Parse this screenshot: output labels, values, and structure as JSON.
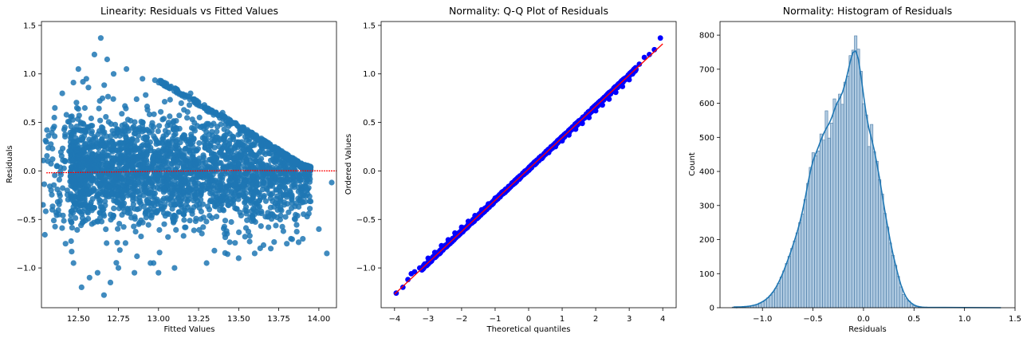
{
  "chart_data": [
    {
      "type": "scatter",
      "title": "Linearity: Residuals vs Fitted Values",
      "xlabel": "Fitted Values",
      "ylabel": "Residuals",
      "xlim": [
        12.27,
        14.11
      ],
      "ylim": [
        -1.41,
        1.54
      ],
      "xticks": [
        12.5,
        12.75,
        13.0,
        13.25,
        13.5,
        13.75,
        14.0
      ],
      "xtick_labels": [
        "12.50",
        "12.75",
        "13.00",
        "13.25",
        "13.50",
        "13.75",
        "14.00"
      ],
      "yticks": [
        -1.0,
        -0.5,
        0.0,
        0.5,
        1.0,
        1.5
      ],
      "ytick_labels": [
        "−1.0",
        "−0.5",
        "0.0",
        "0.5",
        "1.0",
        "1.5"
      ],
      "point_color": "#1f77b4",
      "trend_color": "#ff0000",
      "envelope": {
        "x": [
          12.3,
          12.45,
          12.6,
          12.75,
          12.85,
          13.0,
          13.5,
          13.9,
          14.05
        ],
        "upper": [
          0.7,
          0.9,
          1.0,
          1.05,
          1.0,
          0.95,
          0.48,
          0.07,
          0.0
        ],
        "lower": [
          -0.7,
          -0.85,
          -0.95,
          -1.0,
          -1.0,
          -0.95,
          -0.85,
          -0.75,
          -0.65
        ]
      },
      "sample_points": [
        [
          12.3,
          0.3
        ],
        [
          12.35,
          0.55
        ],
        [
          12.38,
          -0.45
        ],
        [
          12.4,
          0.8
        ],
        [
          12.42,
          -0.75
        ],
        [
          12.45,
          0.2
        ],
        [
          12.47,
          -0.95
        ],
        [
          12.5,
          1.05
        ],
        [
          12.52,
          -1.2
        ],
        [
          12.55,
          0.95
        ],
        [
          12.57,
          -1.1
        ],
        [
          12.6,
          1.2
        ],
        [
          12.62,
          -1.05
        ],
        [
          12.64,
          1.37
        ],
        [
          12.66,
          -1.28
        ],
        [
          12.68,
          1.15
        ],
        [
          12.7,
          -1.15
        ],
        [
          12.72,
          1.0
        ],
        [
          12.75,
          -1.0
        ],
        [
          12.8,
          1.05
        ],
        [
          12.85,
          -1.05
        ],
        [
          12.9,
          0.95
        ],
        [
          12.95,
          -0.95
        ],
        [
          13.0,
          -1.05
        ],
        [
          13.05,
          0.9
        ],
        [
          13.1,
          -1.0
        ],
        [
          13.2,
          0.8
        ],
        [
          13.3,
          -0.95
        ],
        [
          13.4,
          0.6
        ],
        [
          13.5,
          -0.9
        ],
        [
          13.6,
          -0.85
        ],
        [
          13.7,
          -0.8
        ],
        [
          13.8,
          -0.75
        ],
        [
          13.9,
          -0.7
        ],
        [
          14.0,
          -0.6
        ],
        [
          14.05,
          -0.85
        ],
        [
          14.08,
          -0.12
        ],
        [
          12.28,
          -0.35
        ],
        [
          12.31,
          0.1
        ],
        [
          12.33,
          -0.2
        ]
      ],
      "trend": {
        "x": [
          12.3,
          13.0,
          13.5,
          14.11
        ],
        "y": [
          -0.02,
          -0.005,
          0.005,
          0.0
        ]
      }
    },
    {
      "type": "scatter",
      "title": "Normality: Q-Q Plot of Residuals",
      "xlabel": "Theoretical quantiles",
      "ylabel": "Ordered Values",
      "xlim": [
        -4.4,
        4.4
      ],
      "ylim": [
        -1.41,
        1.54
      ],
      "xticks": [
        -4,
        -3,
        -2,
        -1,
        0,
        1,
        2,
        3,
        4
      ],
      "xtick_labels": [
        "−4",
        "−3",
        "−2",
        "−1",
        "0",
        "1",
        "2",
        "3",
        "4"
      ],
      "yticks": [
        -1.0,
        -0.5,
        0.0,
        0.5,
        1.0,
        1.5
      ],
      "ytick_labels": [
        "−1.0",
        "−0.5",
        "0.0",
        "0.5",
        "1.0",
        "1.5"
      ],
      "point_color": "#0000ff",
      "line_color": "#ff0000",
      "fit_line": {
        "x": [
          -4.0,
          4.0
        ],
        "y": [
          -1.27,
          1.31
        ]
      },
      "points_x": [
        -3.95,
        -3.75,
        -3.6,
        -3.5,
        -3.4,
        -3.25,
        -3.1,
        -3.0,
        -2.8,
        -2.6,
        -2.4,
        -2.2,
        -2.0,
        -1.8,
        -1.6,
        -1.4,
        -1.2,
        -1.0,
        -0.8,
        -0.6,
        -0.4,
        -0.2,
        0.0,
        0.2,
        0.4,
        0.6,
        0.8,
        1.0,
        1.2,
        1.4,
        1.6,
        1.8,
        2.0,
        2.2,
        2.4,
        2.6,
        2.8,
        3.0,
        3.1,
        3.2,
        3.3,
        3.45,
        3.6,
        3.75,
        3.93
      ],
      "points_y": [
        -1.26,
        -1.2,
        -1.12,
        -1.06,
        -1.04,
        -1.0,
        -0.96,
        -0.9,
        -0.84,
        -0.77,
        -0.71,
        -0.64,
        -0.58,
        -0.52,
        -0.46,
        -0.4,
        -0.34,
        -0.28,
        -0.22,
        -0.16,
        -0.1,
        -0.04,
        0.02,
        0.07,
        0.13,
        0.19,
        0.25,
        0.31,
        0.37,
        0.43,
        0.49,
        0.55,
        0.62,
        0.68,
        0.74,
        0.81,
        0.87,
        0.94,
        1.0,
        1.05,
        1.1,
        1.17,
        1.2,
        1.25,
        1.37
      ]
    },
    {
      "type": "bar",
      "title": "Normality: Histogram of Residuals",
      "xlabel": "Residuals",
      "ylabel": "Count",
      "xlim": [
        -1.42,
        1.5
      ],
      "ylim": [
        0,
        840
      ],
      "xticks": [
        -1.0,
        -0.5,
        0.0,
        0.5,
        1.0,
        1.5
      ],
      "xtick_labels": [
        "−1.0",
        "−0.5",
        "0.0",
        "0.5",
        "1.0",
        "1.5"
      ],
      "yticks": [
        0,
        100,
        200,
        300,
        400,
        500,
        600,
        700,
        800
      ],
      "ytick_labels": [
        "0",
        "100",
        "200",
        "300",
        "400",
        "500",
        "600",
        "700",
        "800"
      ],
      "bar_color": "#a6c4de",
      "edge_color": "#4a7aa5",
      "kde_color": "#1f77b4",
      "bin_start": -1.3,
      "bin_width": 0.0263,
      "counts": [
        2,
        1,
        3,
        3,
        2,
        4,
        4,
        6,
        7,
        9,
        14,
        17,
        21,
        29,
        36,
        46,
        57,
        72,
        90,
        108,
        130,
        151,
        174,
        196,
        220,
        250,
        275,
        318,
        365,
        412,
        455,
        446,
        460,
        510,
        492,
        578,
        498,
        542,
        613,
        598,
        627,
        597,
        662,
        680,
        740,
        756,
        798,
        759,
        694,
        599,
        566,
        473,
        538,
        458,
        430,
        376,
        334,
        277,
        237,
        190,
        154,
        125,
        92,
        61,
        39,
        26,
        20,
        10,
        6,
        4,
        2,
        1,
        1,
        1
      ]
    }
  ]
}
